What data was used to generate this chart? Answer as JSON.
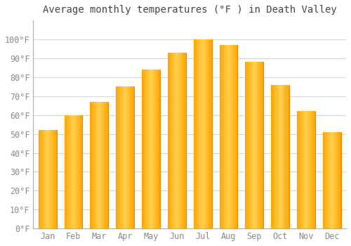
{
  "title": "Average monthly temperatures (°F ) in Death Valley",
  "months": [
    "Jan",
    "Feb",
    "Mar",
    "Apr",
    "May",
    "Jun",
    "Jul",
    "Aug",
    "Sep",
    "Oct",
    "Nov",
    "Dec"
  ],
  "values": [
    52,
    60,
    67,
    75,
    84,
    93,
    100,
    97,
    88,
    76,
    62,
    51
  ],
  "bar_color_main": "#FFA500",
  "bar_color_light": "#FFD050",
  "bar_color_dark": "#F08000",
  "ylim": [
    0,
    110
  ],
  "yticks": [
    0,
    10,
    20,
    30,
    40,
    50,
    60,
    70,
    80,
    90,
    100
  ],
  "ylabel_suffix": "°F",
  "background_color": "#FFFFFF",
  "grid_color": "#CCCCCC",
  "title_fontsize": 10,
  "tick_fontsize": 8.5,
  "tick_color": "#888888"
}
